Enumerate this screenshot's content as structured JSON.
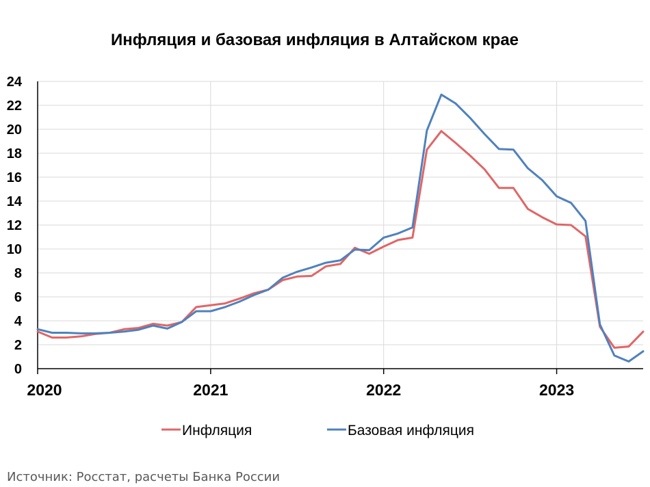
{
  "chart_data": {
    "type": "line",
    "title": "Инфляция и базовая инфляция в Алтайском крае",
    "xlabel": "",
    "ylabel": "",
    "ylim": [
      0,
      24
    ],
    "yticks": [
      "0",
      "2",
      "4",
      "6",
      "8",
      "10",
      "12",
      "14",
      "16",
      "18",
      "20",
      "22",
      "24"
    ],
    "xticks": [
      "2020",
      "2021",
      "2022",
      "2023"
    ],
    "x": [
      "2020-01",
      "2020-02",
      "2020-03",
      "2020-04",
      "2020-05",
      "2020-06",
      "2020-07",
      "2020-08",
      "2020-09",
      "2020-10",
      "2020-11",
      "2020-12",
      "2021-01",
      "2021-02",
      "2021-03",
      "2021-04",
      "2021-05",
      "2021-06",
      "2021-07",
      "2021-08",
      "2021-09",
      "2021-10",
      "2021-11",
      "2021-12",
      "2022-01",
      "2022-02",
      "2022-03",
      "2022-04",
      "2022-05",
      "2022-06",
      "2022-07",
      "2022-08",
      "2022-09",
      "2022-10",
      "2022-11",
      "2022-12",
      "2023-01",
      "2023-02",
      "2023-03",
      "2023-04",
      "2023-05",
      "2023-06",
      "2023-07"
    ],
    "grid": true,
    "legend_position": "bottom",
    "series": [
      {
        "name": "Инфляция",
        "color": "#e06666",
        "values": [
          3.1,
          2.6,
          2.6,
          2.7,
          2.9,
          3.0,
          3.3,
          3.4,
          3.75,
          3.6,
          3.9,
          5.15,
          5.3,
          5.45,
          5.85,
          6.3,
          6.6,
          7.4,
          7.7,
          7.75,
          8.55,
          8.75,
          10.1,
          9.6,
          10.2,
          10.75,
          10.95,
          18.3,
          19.85,
          18.85,
          17.8,
          16.65,
          15.1,
          15.1,
          13.35,
          12.65,
          12.05,
          12.0,
          11.05,
          3.5,
          1.75,
          1.85,
          3.1
        ]
      },
      {
        "name": "Базовая инфляция",
        "color": "#4f81bd",
        "values": [
          3.3,
          3.0,
          3.0,
          2.95,
          2.95,
          3.0,
          3.1,
          3.25,
          3.6,
          3.35,
          3.9,
          4.8,
          4.8,
          5.15,
          5.6,
          6.15,
          6.6,
          7.6,
          8.1,
          8.45,
          8.85,
          9.05,
          9.95,
          9.9,
          10.95,
          11.3,
          11.8,
          19.9,
          22.9,
          22.15,
          20.95,
          19.6,
          18.35,
          18.3,
          16.75,
          15.75,
          14.4,
          13.85,
          12.35,
          3.7,
          1.1,
          0.6,
          1.45
        ]
      }
    ]
  },
  "footer": {
    "source": "Источник: Росстат, расчеты Банка России"
  }
}
